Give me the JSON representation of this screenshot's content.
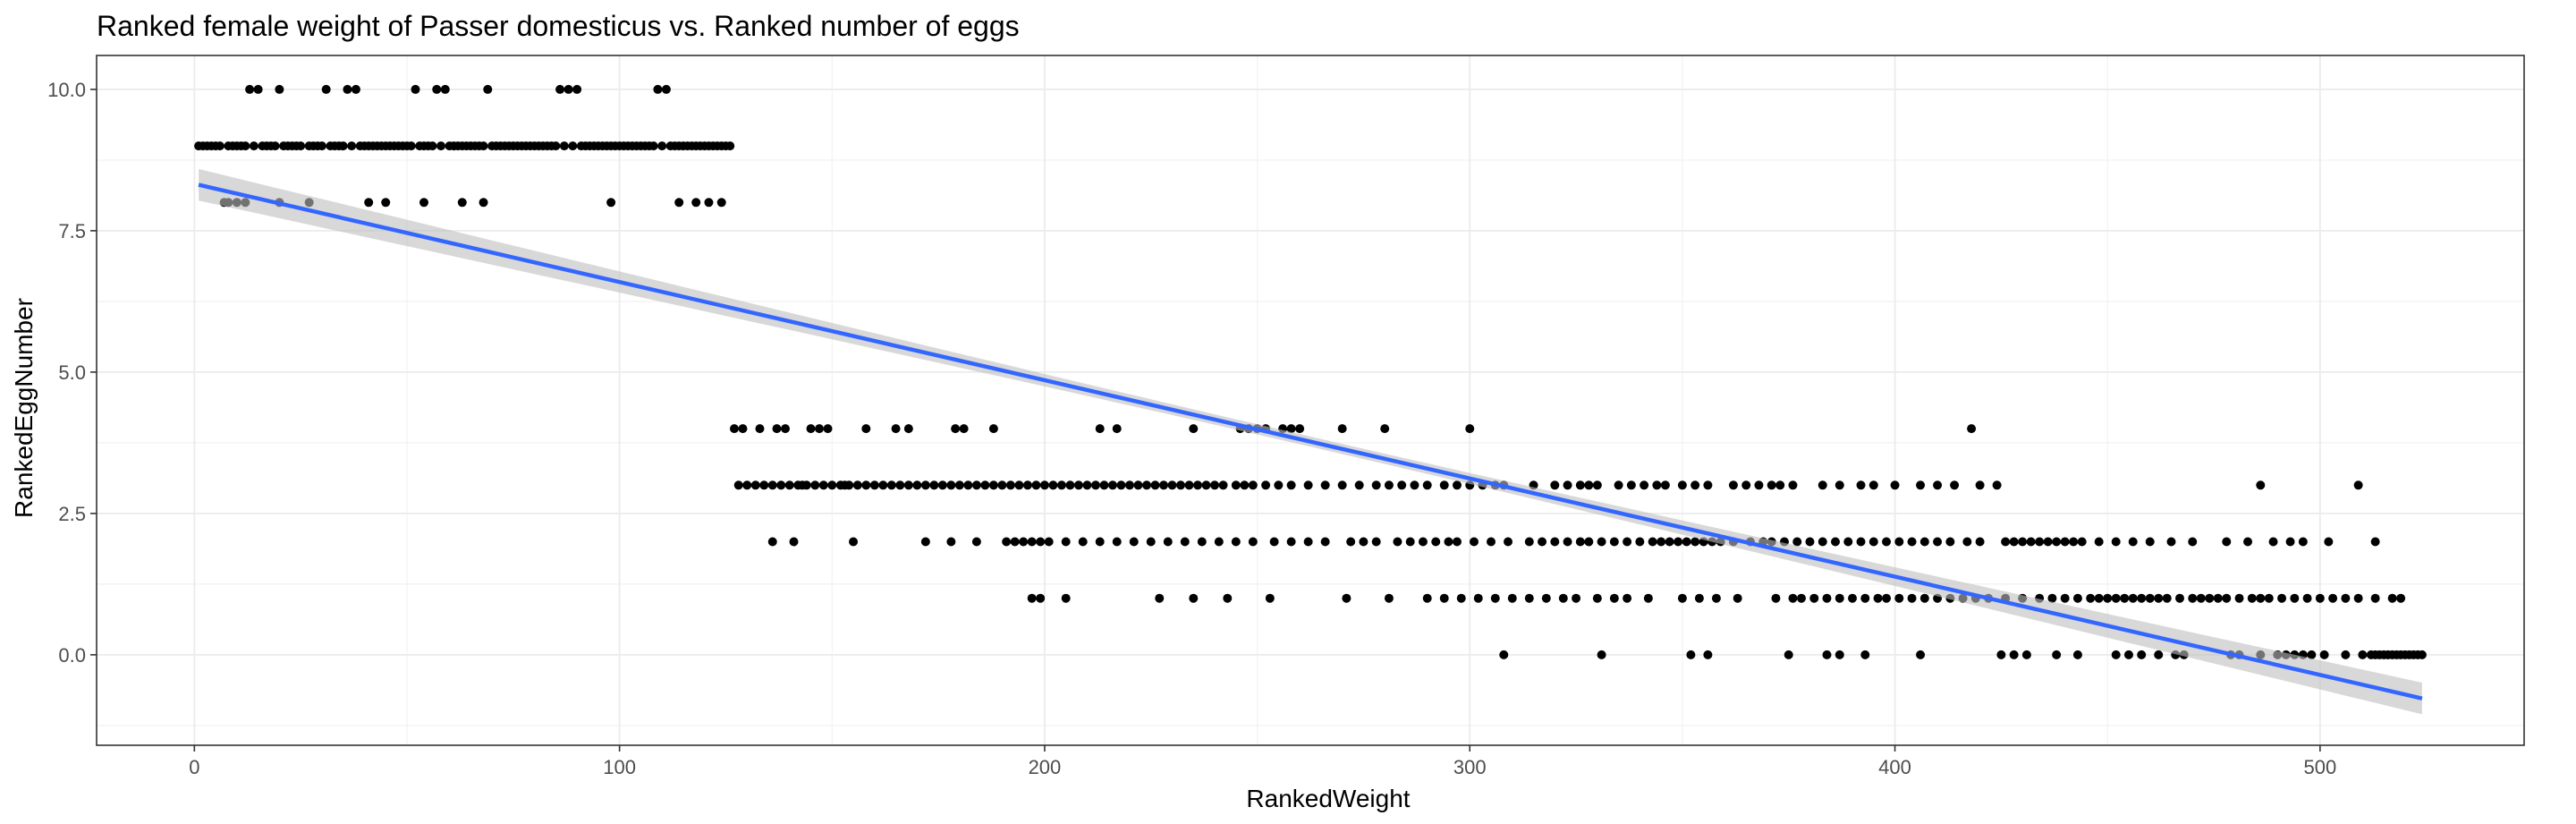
{
  "chart_data": {
    "type": "scatter",
    "title": "Ranked female weight of Passer domesticus vs. Ranked number of eggs",
    "xlabel": "RankedWeight",
    "ylabel": "RankedEggNumber",
    "xlim": [
      -23,
      548
    ],
    "ylim": [
      -1.6,
      10.6
    ],
    "x_ticks": [
      0,
      100,
      200,
      300,
      400,
      500
    ],
    "x_tick_labels": [
      "0",
      "100",
      "200",
      "300",
      "400",
      "500"
    ],
    "y_ticks": [
      0,
      2.5,
      5,
      7.5,
      10
    ],
    "y_tick_labels": [
      "0.0",
      "2.5",
      "5.0",
      "7.5",
      "10.0"
    ],
    "grid": true,
    "point_color": "#000000",
    "line_color": "#3366FF",
    "band_color": "#BEBEBE",
    "smooth": {
      "method": "linear",
      "x_range": [
        1,
        524
      ],
      "intercept": 8.33,
      "slope": -0.01737,
      "se_at_ends": 0.28,
      "se_at_center": 0.09
    },
    "groups": [
      {
        "y": 10,
        "x": [
          13,
          15,
          20,
          31,
          36,
          38,
          52,
          57,
          59,
          69,
          86,
          88,
          90,
          109,
          111
        ]
      },
      {
        "y": 9,
        "x": [
          1,
          2,
          3,
          4,
          5,
          6,
          8,
          9,
          10,
          11,
          12,
          14,
          16,
          17,
          18,
          19,
          21,
          22,
          23,
          24,
          25,
          27,
          28,
          29,
          30,
          32,
          33,
          34,
          35,
          37,
          39,
          40,
          41,
          42,
          43,
          44,
          45,
          46,
          47,
          48,
          49,
          50,
          51,
          53,
          54,
          55,
          56,
          58,
          60,
          61,
          62,
          63,
          64,
          65,
          66,
          67,
          68,
          70,
          71,
          72,
          73,
          74,
          75,
          76,
          77,
          78,
          79,
          80,
          81,
          82,
          83,
          84,
          85,
          87,
          89,
          91,
          92,
          93,
          94,
          95,
          96,
          97,
          98,
          99,
          100,
          101,
          102,
          103,
          104,
          105,
          106,
          107,
          108,
          110,
          112,
          113,
          114,
          115,
          116,
          117,
          118,
          119,
          120,
          121,
          122,
          123,
          124,
          125,
          126
        ]
      },
      {
        "y": 8,
        "x": [
          7,
          8,
          10,
          12,
          20,
          27,
          41,
          45,
          54,
          63,
          68,
          98,
          114,
          118,
          121,
          124
        ]
      },
      {
        "y": 4,
        "x": [
          127,
          129,
          133,
          137,
          139,
          145,
          147,
          149,
          158,
          165,
          168,
          179,
          181,
          188,
          213,
          217,
          235,
          246,
          248,
          250,
          252,
          256,
          258,
          260,
          270,
          280,
          300,
          418
        ]
      },
      {
        "y": 3,
        "x": [
          128,
          130,
          132,
          134,
          136,
          138,
          140,
          142,
          143,
          144,
          146,
          148,
          150,
          152,
          153,
          154,
          156,
          158,
          160,
          162,
          164,
          166,
          168,
          170,
          172,
          174,
          176,
          178,
          180,
          182,
          184,
          186,
          188,
          190,
          192,
          194,
          196,
          198,
          200,
          202,
          204,
          206,
          208,
          210,
          212,
          214,
          216,
          218,
          220,
          222,
          224,
          226,
          228,
          230,
          232,
          234,
          236,
          238,
          240,
          242,
          245,
          247,
          249,
          252,
          255,
          258,
          262,
          266,
          270,
          274,
          278,
          281,
          284,
          287,
          290,
          294,
          297,
          300,
          303,
          306,
          308,
          315,
          320,
          323,
          326,
          328,
          330,
          335,
          338,
          341,
          344,
          346,
          350,
          353,
          356,
          362,
          365,
          368,
          371,
          373,
          376,
          383,
          387,
          392,
          395,
          400,
          406,
          410,
          414,
          420,
          424,
          486,
          509
        ]
      },
      {
        "y": 2,
        "x": [
          136,
          141,
          155,
          172,
          178,
          184,
          191,
          193,
          195,
          197,
          199,
          201,
          205,
          209,
          213,
          217,
          221,
          225,
          229,
          233,
          237,
          241,
          245,
          249,
          254,
          258,
          262,
          266,
          272,
          275,
          278,
          283,
          286,
          289,
          292,
          295,
          297,
          301,
          305,
          309,
          314,
          317,
          320,
          323,
          326,
          328,
          331,
          334,
          337,
          340,
          343,
          345,
          347,
          349,
          351,
          353,
          355,
          357,
          359,
          362,
          366,
          369,
          371,
          374,
          377,
          380,
          383,
          386,
          389,
          392,
          395,
          398,
          401,
          404,
          407,
          410,
          413,
          417,
          420,
          426,
          428,
          430,
          432,
          434,
          436,
          438,
          440,
          442,
          444,
          448,
          452,
          456,
          460,
          465,
          470,
          478,
          483,
          489,
          493,
          496,
          502,
          513
        ]
      },
      {
        "y": 1,
        "x": [
          197,
          199,
          205,
          227,
          235,
          243,
          253,
          271,
          281,
          290,
          294,
          298,
          302,
          306,
          310,
          314,
          318,
          322,
          325,
          330,
          334,
          337,
          342,
          350,
          354,
          358,
          363,
          372,
          376,
          378,
          381,
          384,
          387,
          390,
          393,
          396,
          398,
          401,
          404,
          407,
          410,
          413,
          416,
          419,
          422,
          426,
          430,
          434,
          437,
          440,
          443,
          446,
          448,
          450,
          452,
          454,
          456,
          458,
          460,
          462,
          464,
          467,
          470,
          472,
          474,
          476,
          478,
          481,
          484,
          486,
          488,
          491,
          494,
          497,
          500,
          503,
          506,
          509,
          513,
          517,
          519
        ]
      },
      {
        "y": 0,
        "x": [
          308,
          331,
          352,
          356,
          375,
          384,
          387,
          393,
          406,
          425,
          428,
          431,
          438,
          443,
          452,
          455,
          458,
          462,
          466,
          468,
          479,
          481,
          486,
          490,
          492,
          494,
          496,
          498,
          501,
          506,
          510,
          512,
          513,
          514,
          515,
          516,
          517,
          518,
          519,
          520,
          521,
          522,
          523,
          524
        ]
      }
    ]
  }
}
